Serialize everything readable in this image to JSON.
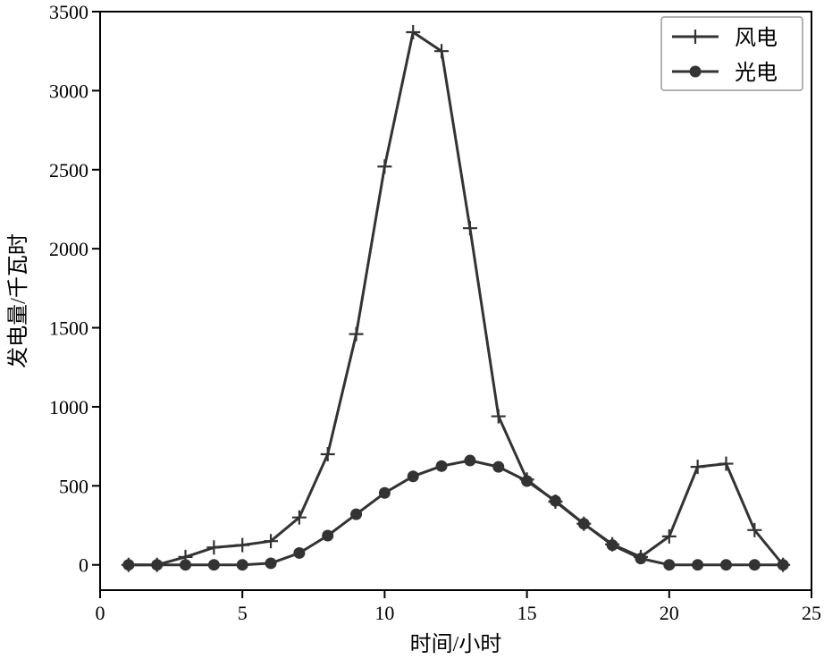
{
  "chart_data": {
    "type": "line",
    "xlabel": "时间/小时",
    "ylabel": "发电量/千瓦时",
    "xlim": [
      0,
      25
    ],
    "ylim": [
      -160,
      3500
    ],
    "xticks": [
      0,
      5,
      10,
      15,
      20,
      25
    ],
    "yticks": [
      0,
      500,
      1000,
      1500,
      2000,
      2500,
      3000,
      3500
    ],
    "grid": false,
    "legend_position": "top-right",
    "series": [
      {
        "name": "风电",
        "marker": "plus",
        "color": "#333333",
        "x": [
          1,
          2,
          3,
          4,
          5,
          6,
          7,
          8,
          9,
          10,
          11,
          12,
          13,
          14,
          15,
          16,
          17,
          18,
          19,
          20,
          21,
          22,
          23,
          24
        ],
        "y": [
          0,
          0,
          50,
          110,
          125,
          150,
          300,
          700,
          1460,
          2520,
          3370,
          3250,
          2130,
          940,
          540,
          400,
          260,
          130,
          50,
          180,
          620,
          640,
          220,
          0
        ]
      },
      {
        "name": "光电",
        "marker": "circle",
        "color": "#333333",
        "x": [
          1,
          2,
          3,
          4,
          5,
          6,
          7,
          8,
          9,
          10,
          11,
          12,
          13,
          14,
          15,
          16,
          17,
          18,
          19,
          20,
          21,
          22,
          23,
          24
        ],
        "y": [
          0,
          0,
          0,
          0,
          0,
          10,
          75,
          185,
          320,
          455,
          560,
          625,
          660,
          620,
          530,
          405,
          260,
          125,
          40,
          0,
          0,
          0,
          0,
          0
        ]
      }
    ]
  }
}
